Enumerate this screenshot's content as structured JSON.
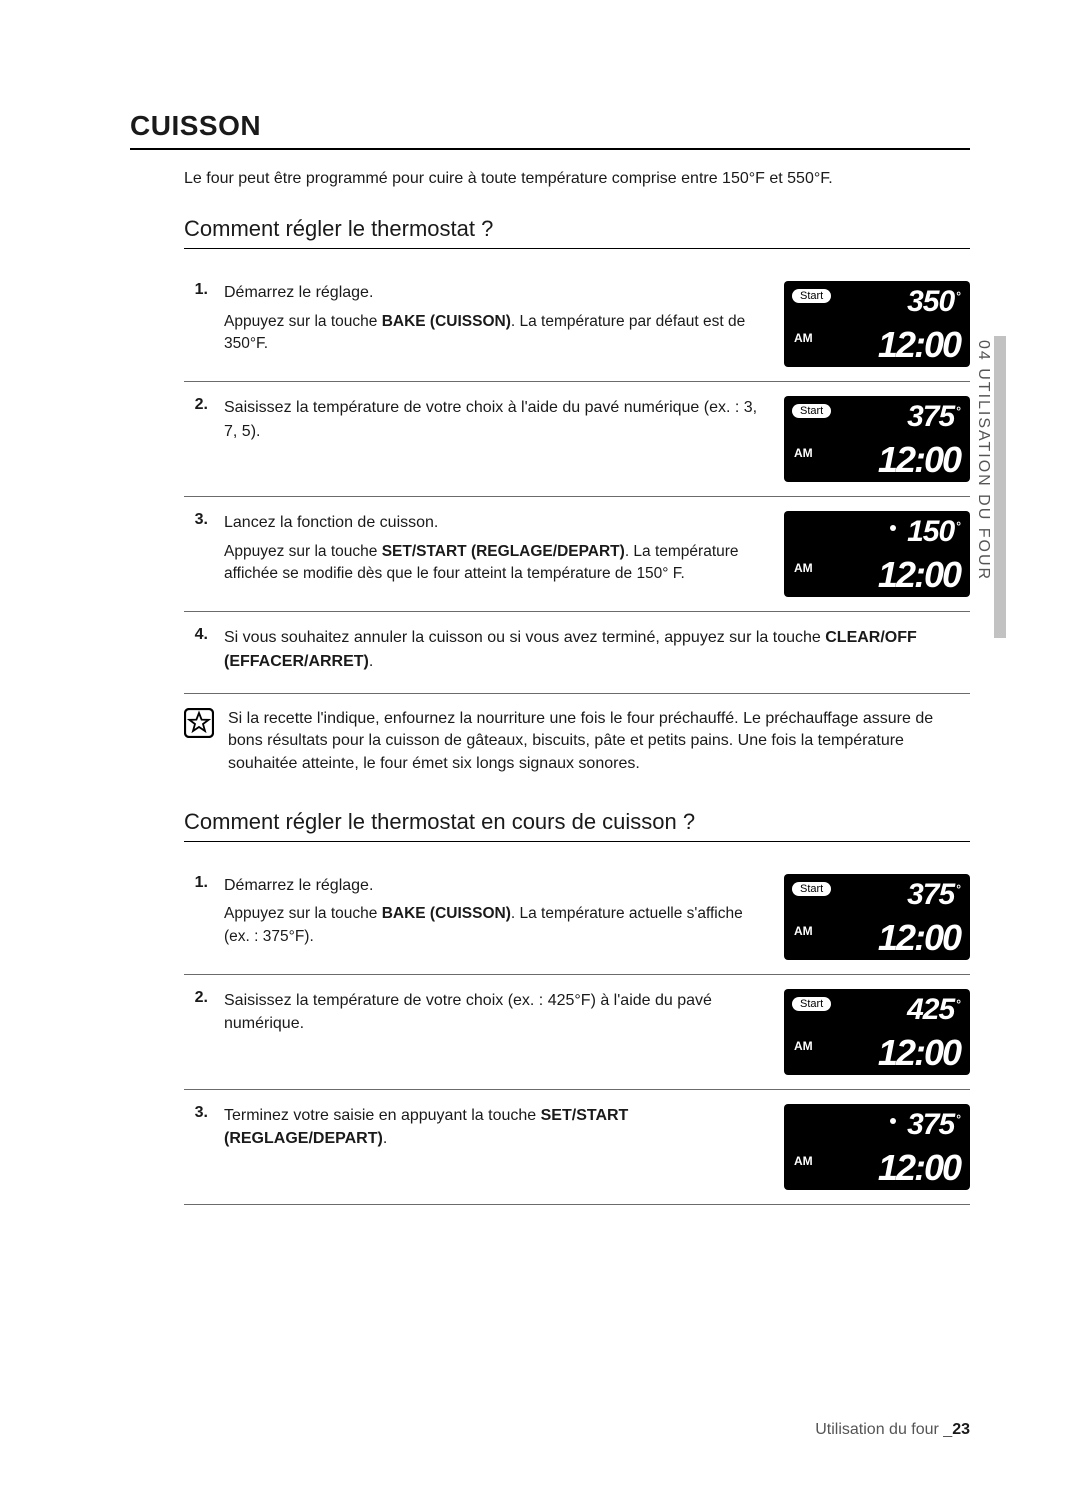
{
  "title": "CUISSON",
  "intro": "Le four peut être programmé pour cuire à toute température comprise entre 150°F et 550°F.",
  "sideTab": "04  UTILISATION DU FOUR",
  "footer": {
    "label": "Utilisation du four _",
    "page": "23"
  },
  "sec1": {
    "heading": "Comment régler le thermostat ?",
    "steps": [
      {
        "num": "1.",
        "lead": "Démarrez le réglage.",
        "sub_pre": "Appuyez sur la touche ",
        "sub_b": "BAKE (CUISSON)",
        "sub_post": ". La température par défaut est de 350°F.",
        "disp": {
          "start": "Start",
          "temp": "350",
          "time": "12:00",
          "am": "AM",
          "showStart": true,
          "showDot": false
        }
      },
      {
        "num": "2.",
        "lead": "Saisissez la température de votre choix à l'aide du pavé numérique (ex. : 3, 7, 5).",
        "sub_pre": "",
        "sub_b": "",
        "sub_post": "",
        "disp": {
          "start": "Start",
          "temp": "375",
          "time": "12:00",
          "am": "AM",
          "showStart": true,
          "showDot": false
        }
      },
      {
        "num": "3.",
        "lead": "Lancez la fonction de cuisson.",
        "sub_pre": "Appuyez sur la touche ",
        "sub_b": "SET/START (REGLAGE/DEPART)",
        "sub_post": ". La température affichée se modifie dès que le four atteint la température de 150° F.",
        "disp": {
          "start": "",
          "temp": "150",
          "time": "12:00",
          "am": "AM",
          "showStart": false,
          "showDot": true
        }
      },
      {
        "num": "4.",
        "lead_pre": "Si vous souhaitez annuler la cuisson ou si vous avez terminé, appuyez sur la touche ",
        "lead_b": "CLEAR/OFF (EFFACER/ARRET)",
        "lead_post": ".",
        "disp": null
      }
    ],
    "note": "Si la recette l'indique, enfournez la nourriture une fois le four préchauffé. Le préchauffage assure de bons résultats pour la cuisson de gâteaux, biscuits, pâte et petits pains. Une fois la température souhaitée atteinte, le four émet six longs signaux sonores."
  },
  "sec2": {
    "heading": "Comment régler le thermostat en cours de cuisson ?",
    "steps": [
      {
        "num": "1.",
        "lead": "Démarrez le réglage.",
        "sub_pre": "Appuyez sur la touche ",
        "sub_b": "BAKE (CUISSON)",
        "sub_post": ". La température actuelle s'affiche (ex. : 375°F).",
        "disp": {
          "start": "Start",
          "temp": "375",
          "time": "12:00",
          "am": "AM",
          "showStart": true,
          "showDot": false
        }
      },
      {
        "num": "2.",
        "lead": "Saisissez la température de votre choix (ex. : 425°F) à l'aide du pavé numérique.",
        "sub_pre": "",
        "sub_b": "",
        "sub_post": "",
        "disp": {
          "start": "Start",
          "temp": "425",
          "time": "12:00",
          "am": "AM",
          "showStart": true,
          "showDot": false
        }
      },
      {
        "num": "3.",
        "lead_pre": "Terminez votre saisie en appuyant la touche ",
        "lead_b": "SET/START (REGLAGE/DEPART)",
        "lead_post": ".",
        "sub_pre": "",
        "sub_b": "",
        "sub_post": "",
        "disp": {
          "start": "",
          "temp": "375",
          "time": "12:00",
          "am": "AM",
          "showStart": false,
          "showDot": true
        }
      }
    ]
  }
}
